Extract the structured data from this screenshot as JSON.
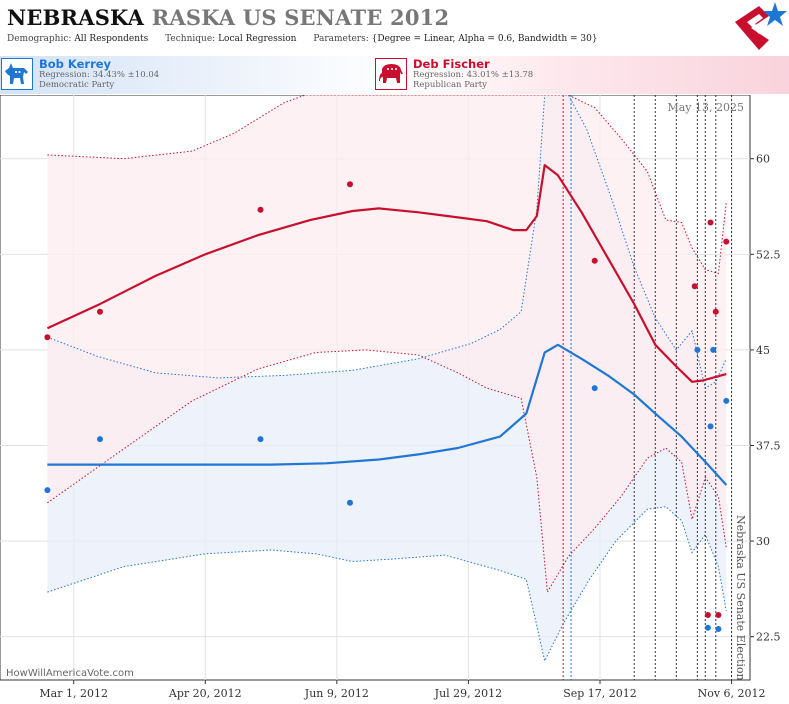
{
  "header": {
    "title_state": "NEBRASKA",
    "title_race": "RASKA US SENATE 2012",
    "demographic_label": "Demographic:",
    "demographic_value": "All Respondents",
    "technique_label": "Technique:",
    "technique_value": "Local Regression",
    "parameters_label": "Parameters:",
    "parameters_value": "{Degree = Linear, Alpha = 0.6, Bandwidth = 30}",
    "logo_icon": "stars-stripes-logo-icon"
  },
  "candidates": [
    {
      "name": "Bob Kerrey",
      "regression": "Regression: 34.43% ±10.04",
      "party": "Democratic Party",
      "color": "#1f77d4",
      "icon": "donkey-icon"
    },
    {
      "name": "Deb Fischer",
      "regression": "Regression: 43.01% ±13.78",
      "party": "Republican Party",
      "color": "#c8102e",
      "icon": "elephant-icon"
    }
  ],
  "watermark": "HowWillAmericaVote.com",
  "chart_data": {
    "type": "scatter",
    "date_label": "May 13, 2025",
    "vertical_label": "Nebraska US Senate Election",
    "x_ticks": [
      "Mar 1, 2012",
      "Apr 20, 2012",
      "Jun 9, 2012",
      "Jul 29, 2012",
      "Sep 17, 2012",
      "Nov 6, 2012"
    ],
    "x_range": [
      "2012-02-02",
      "2012-11-13"
    ],
    "ylim": [
      19.1,
      65.0
    ],
    "y_ticks": [
      "22.5",
      "30",
      "37.5",
      "45",
      "52.5",
      "60"
    ],
    "grid": true,
    "event_lines": [
      {
        "date": "2012-09-03",
        "color": "#c8102e"
      },
      {
        "date": "2012-09-06",
        "color": "#1f77d4"
      },
      {
        "date": "2012-09-30",
        "color": "#333333"
      },
      {
        "date": "2012-10-08",
        "color": "#333333"
      },
      {
        "date": "2012-10-16",
        "color": "#333333"
      },
      {
        "date": "2012-10-24",
        "color": "#333333"
      },
      {
        "date": "2012-10-27",
        "color": "#333333"
      },
      {
        "date": "2012-10-31",
        "color": "#333333"
      },
      {
        "date": "2012-11-06",
        "color": "#333333"
      }
    ],
    "series": [
      {
        "name": "Bob Kerrey",
        "color": "#1f77d4",
        "fill": "#e7eef9",
        "points": [
          [
            "2012-02-20",
            34.0
          ],
          [
            "2012-03-11",
            38.0
          ],
          [
            "2012-05-11",
            38.0
          ],
          [
            "2012-06-14",
            33.0
          ],
          [
            "2012-09-15",
            42.0
          ],
          [
            "2012-10-24",
            45.0
          ],
          [
            "2012-10-30",
            45.0
          ],
          [
            "2012-10-29",
            39.0
          ],
          [
            "2012-11-04",
            41.0
          ],
          [
            "2012-10-28",
            23.2
          ],
          [
            "2012-11-01",
            23.1
          ]
        ],
        "regression": [
          [
            "2012-02-20",
            36.0
          ],
          [
            "2012-03-20",
            36.0
          ],
          [
            "2012-04-20",
            36.0
          ],
          [
            "2012-05-15",
            36.0
          ],
          [
            "2012-06-05",
            36.1
          ],
          [
            "2012-06-25",
            36.4
          ],
          [
            "2012-07-10",
            36.8
          ],
          [
            "2012-07-25",
            37.3
          ],
          [
            "2012-08-10",
            38.2
          ],
          [
            "2012-08-20",
            40.0
          ],
          [
            "2012-08-27",
            44.8
          ],
          [
            "2012-09-01",
            45.4
          ],
          [
            "2012-09-10",
            44.3
          ],
          [
            "2012-09-20",
            43.0
          ],
          [
            "2012-09-30",
            41.5
          ],
          [
            "2012-10-08",
            40.0
          ],
          [
            "2012-10-18",
            38.2
          ],
          [
            "2012-10-28",
            36.0
          ],
          [
            "2012-11-04",
            34.4
          ]
        ],
        "upper": [
          [
            "2012-02-20",
            46.0
          ],
          [
            "2012-03-10",
            44.5
          ],
          [
            "2012-04-01",
            43.2
          ],
          [
            "2012-04-25",
            42.8
          ],
          [
            "2012-05-20",
            43.0
          ],
          [
            "2012-06-15",
            43.4
          ],
          [
            "2012-07-10",
            44.3
          ],
          [
            "2012-07-30",
            45.5
          ],
          [
            "2012-08-10",
            46.6
          ],
          [
            "2012-08-18",
            48.0
          ],
          [
            "2012-08-24",
            56.0
          ],
          [
            "2012-08-27",
            65.0
          ],
          [
            "2012-09-05",
            65.0
          ],
          [
            "2012-09-12",
            62.3
          ],
          [
            "2012-09-22",
            56.5
          ],
          [
            "2012-09-30",
            51.5
          ],
          [
            "2012-10-08",
            47.5
          ],
          [
            "2012-10-16",
            45.0
          ],
          [
            "2012-10-22",
            46.5
          ],
          [
            "2012-10-27",
            42.0
          ],
          [
            "2012-10-31",
            42.5
          ],
          [
            "2012-11-04",
            44.3
          ]
        ],
        "lower": [
          [
            "2012-02-20",
            26.0
          ],
          [
            "2012-03-20",
            28.0
          ],
          [
            "2012-04-20",
            29.0
          ],
          [
            "2012-05-15",
            29.3
          ],
          [
            "2012-06-01",
            29.0
          ],
          [
            "2012-06-15",
            28.4
          ],
          [
            "2012-07-01",
            28.6
          ],
          [
            "2012-07-20",
            28.9
          ],
          [
            "2012-08-10",
            27.7
          ],
          [
            "2012-08-20",
            27.0
          ],
          [
            "2012-08-27",
            20.6
          ],
          [
            "2012-09-03",
            23.5
          ],
          [
            "2012-09-13",
            27.0
          ],
          [
            "2012-09-23",
            30.0
          ],
          [
            "2012-10-05",
            32.5
          ],
          [
            "2012-10-12",
            32.7
          ],
          [
            "2012-10-18",
            31.6
          ],
          [
            "2012-10-22",
            29.1
          ],
          [
            "2012-10-27",
            30.5
          ],
          [
            "2012-11-01",
            28.0
          ],
          [
            "2012-11-04",
            24.5
          ]
        ]
      },
      {
        "name": "Deb Fischer",
        "color": "#c8102e",
        "fill": "#fdecf0",
        "points": [
          [
            "2012-02-20",
            46.0
          ],
          [
            "2012-03-11",
            48.0
          ],
          [
            "2012-05-11",
            56.0
          ],
          [
            "2012-06-14",
            58.0
          ],
          [
            "2012-09-15",
            52.0
          ],
          [
            "2012-10-23",
            50.0
          ],
          [
            "2012-10-29",
            55.0
          ],
          [
            "2012-10-31",
            48.0
          ],
          [
            "2012-11-04",
            53.5
          ],
          [
            "2012-10-28",
            24.2
          ],
          [
            "2012-11-01",
            24.2
          ]
        ],
        "regression": [
          [
            "2012-02-20",
            46.7
          ],
          [
            "2012-03-10",
            48.5
          ],
          [
            "2012-04-01",
            50.8
          ],
          [
            "2012-04-20",
            52.5
          ],
          [
            "2012-05-10",
            54.0
          ],
          [
            "2012-05-30",
            55.2
          ],
          [
            "2012-06-15",
            55.9
          ],
          [
            "2012-06-25",
            56.1
          ],
          [
            "2012-07-10",
            55.8
          ],
          [
            "2012-07-25",
            55.4
          ],
          [
            "2012-08-05",
            55.1
          ],
          [
            "2012-08-15",
            54.4
          ],
          [
            "2012-08-20",
            54.4
          ],
          [
            "2012-08-24",
            55.5
          ],
          [
            "2012-08-27",
            59.5
          ],
          [
            "2012-09-01",
            58.7
          ],
          [
            "2012-09-10",
            55.8
          ],
          [
            "2012-09-20",
            52.2
          ],
          [
            "2012-09-30",
            48.6
          ],
          [
            "2012-10-08",
            45.4
          ],
          [
            "2012-10-16",
            43.7
          ],
          [
            "2012-10-22",
            42.5
          ],
          [
            "2012-10-26",
            42.6
          ],
          [
            "2012-11-04",
            43.1
          ]
        ],
        "upper": [
          [
            "2012-02-20",
            60.3
          ],
          [
            "2012-03-20",
            60.0
          ],
          [
            "2012-04-15",
            60.6
          ],
          [
            "2012-05-01",
            62.0
          ],
          [
            "2012-05-20",
            64.4
          ],
          [
            "2012-05-28",
            65.0
          ],
          [
            "2012-08-26",
            65.0
          ],
          [
            "2012-09-05",
            65.0
          ],
          [
            "2012-09-15",
            64.0
          ],
          [
            "2012-09-25",
            61.6
          ],
          [
            "2012-10-05",
            59.0
          ],
          [
            "2012-10-12",
            55.2
          ],
          [
            "2012-10-18",
            55.0
          ],
          [
            "2012-10-22",
            53.0
          ],
          [
            "2012-10-27",
            51.3
          ],
          [
            "2012-11-01",
            51.0
          ],
          [
            "2012-11-04",
            56.6
          ]
        ],
        "lower": [
          [
            "2012-02-20",
            33.0
          ],
          [
            "2012-03-15",
            36.5
          ],
          [
            "2012-04-15",
            41.0
          ],
          [
            "2012-05-10",
            43.5
          ],
          [
            "2012-06-01",
            44.8
          ],
          [
            "2012-06-20",
            45.0
          ],
          [
            "2012-07-10",
            44.6
          ],
          [
            "2012-07-25",
            43.2
          ],
          [
            "2012-08-05",
            42.0
          ],
          [
            "2012-08-18",
            41.2
          ],
          [
            "2012-08-24",
            35.0
          ],
          [
            "2012-08-28",
            26.0
          ],
          [
            "2012-09-05",
            28.8
          ],
          [
            "2012-09-15",
            31.0
          ],
          [
            "2012-09-25",
            33.5
          ],
          [
            "2012-10-05",
            36.5
          ],
          [
            "2012-10-12",
            37.3
          ],
          [
            "2012-10-18",
            36.2
          ],
          [
            "2012-10-22",
            31.7
          ],
          [
            "2012-10-27",
            35.0
          ],
          [
            "2012-11-01",
            33.5
          ],
          [
            "2012-11-04",
            29.5
          ]
        ]
      }
    ]
  }
}
